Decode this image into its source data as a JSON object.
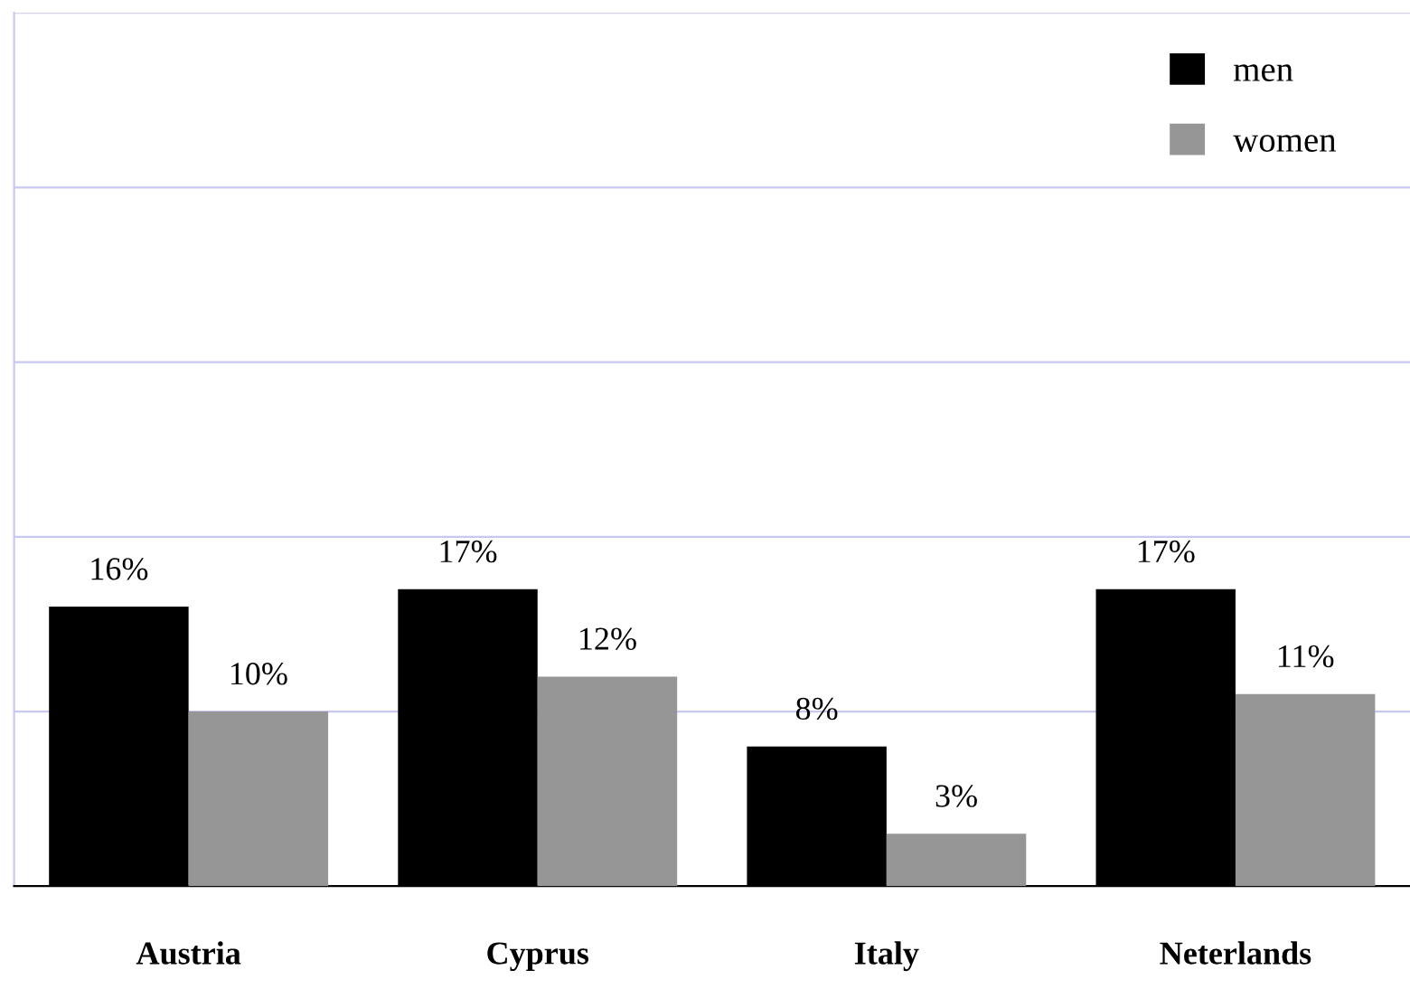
{
  "chart_data": {
    "type": "bar",
    "categories": [
      "Austria",
      "Cyprus",
      "Italy",
      "Neterlands"
    ],
    "series": [
      {
        "name": "men",
        "color": "#000000",
        "values": [
          16,
          17,
          8,
          17
        ],
        "value_labels": [
          "16%",
          "17%",
          "8%",
          "17%"
        ]
      },
      {
        "name": "women",
        "color": "#969696",
        "values": [
          10,
          12,
          3,
          11
        ],
        "value_labels": [
          "10%",
          "12%",
          "3%",
          "11%"
        ]
      }
    ],
    "ylim": [
      0,
      50
    ],
    "yticks": [
      {
        "value": 0,
        "label": null
      },
      {
        "value": 10,
        "label": null
      },
      {
        "value": 20,
        "label": null
      },
      {
        "value": 30,
        "label": null
      },
      {
        "value": 40,
        "label": null
      },
      {
        "value": 50,
        "label": null
      }
    ],
    "tick_labels": "x",
    "grid": "y",
    "legend": "top right"
  }
}
